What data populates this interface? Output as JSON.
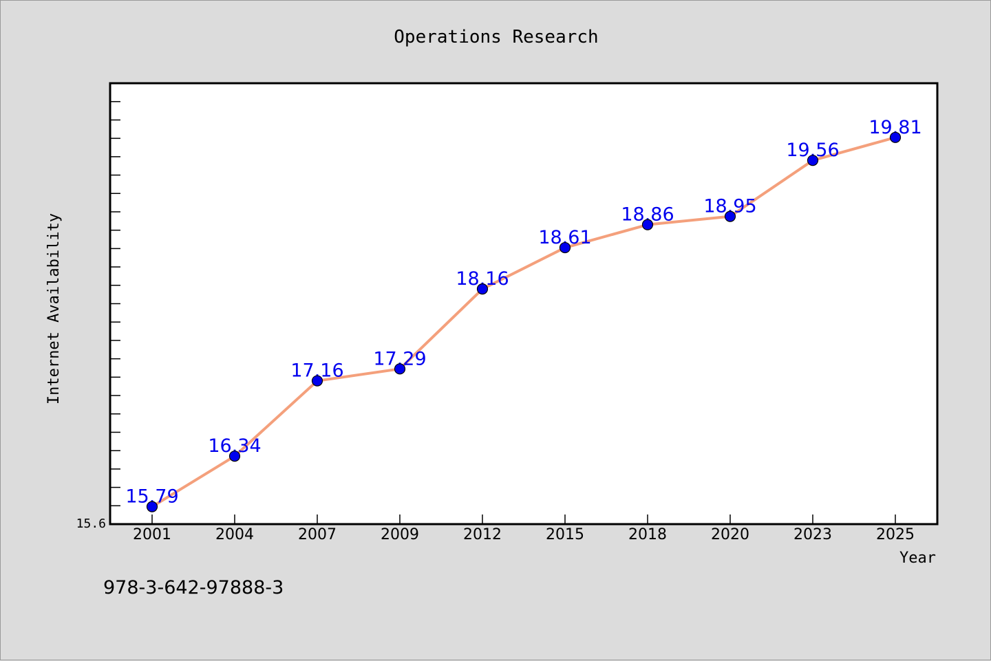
{
  "chart_data": {
    "type": "line",
    "title": "Operations Research",
    "xlabel": "Year",
    "ylabel": "Internet Availability",
    "categories": [
      "2001",
      "2004",
      "2007",
      "2009",
      "2012",
      "2015",
      "2018",
      "2020",
      "2023",
      "2025"
    ],
    "series": [
      {
        "values": [
          15.79,
          16.34,
          17.16,
          17.29,
          18.16,
          18.61,
          18.86,
          18.95,
          19.56,
          19.81
        ],
        "labels": [
          "15.79",
          "16.34",
          "17.16",
          "17.29",
          "18.16",
          "18.61",
          "18.86",
          "18.95",
          "19.56",
          "19.81"
        ],
        "line_color": "#f4a07c",
        "marker_color": "#0000ee",
        "label_color": "#0000ee"
      }
    ],
    "ylim": [
      15.6,
      20.4
    ],
    "ytick_labels": [
      "15.6"
    ],
    "grid": false,
    "legend": "none"
  },
  "footer": {
    "isbn": "978-3-642-97888-3"
  },
  "colors": {
    "background": "#dcdcdc",
    "plot_background": "#ffffff",
    "axis": "#000000"
  }
}
